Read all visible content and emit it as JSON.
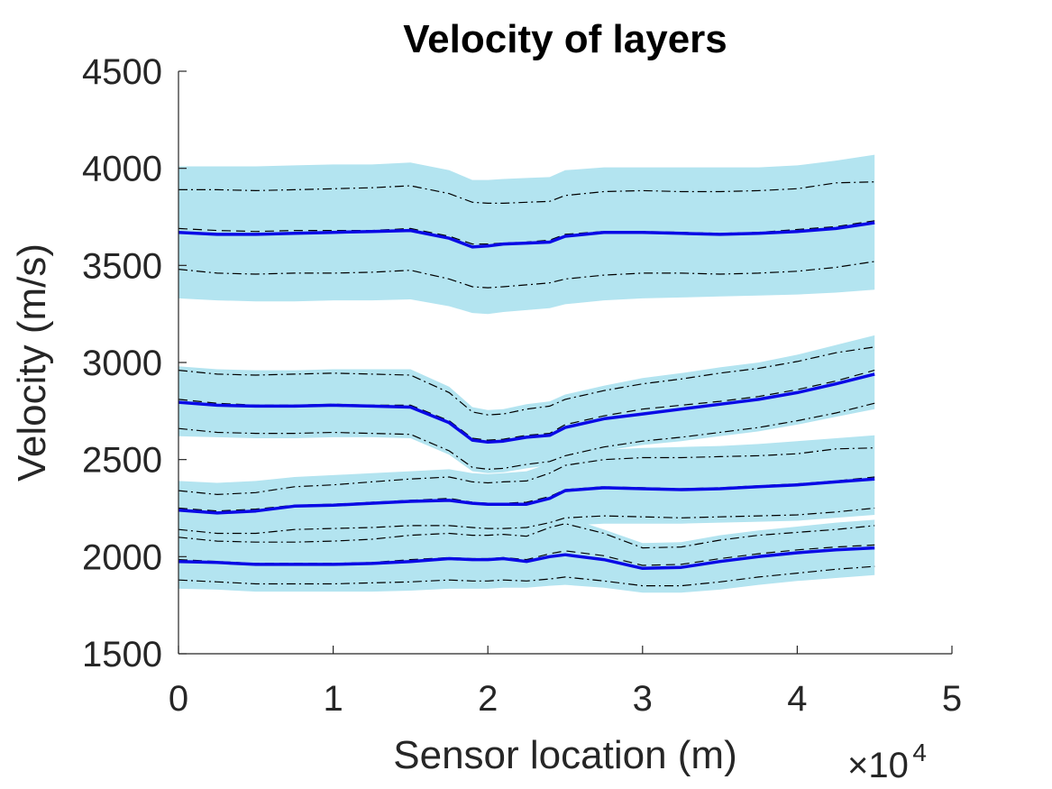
{
  "chart_data": {
    "type": "area",
    "title": "Velocity of layers",
    "xlabel": "Sensor location (m)",
    "ylabel": "Velocity (m/s)",
    "x_exponent": {
      "base": "×10",
      "power": "4"
    },
    "xlim": [
      0,
      5
    ],
    "ylim": [
      1500,
      4500
    ],
    "xticks": [
      0,
      1,
      2,
      3,
      4,
      5
    ],
    "xtick_labels": [
      "0",
      "1",
      "2",
      "3",
      "4",
      "5"
    ],
    "yticks": [
      1500,
      2000,
      2500,
      3000,
      3500,
      4000,
      4500
    ],
    "ytick_labels": [
      "1500",
      "2000",
      "2500",
      "3000",
      "3500",
      "4000",
      "4500"
    ],
    "grid": false,
    "colors": {
      "band": "#b3e4f0",
      "mean": "#0a0ae6",
      "dashed": "#000000"
    },
    "x": [
      0,
      0.25,
      0.5,
      0.75,
      1.0,
      1.25,
      1.5,
      1.75,
      1.9,
      2.0,
      2.1,
      2.25,
      2.4,
      2.5,
      2.75,
      3.0,
      3.25,
      3.5,
      3.75,
      4.0,
      4.25,
      4.5
    ],
    "series": [
      {
        "mean": [
          3670,
          3660,
          3660,
          3665,
          3670,
          3675,
          3680,
          3640,
          3595,
          3600,
          3610,
          3615,
          3620,
          3650,
          3670,
          3670,
          3665,
          3660,
          3665,
          3675,
          3690,
          3720
        ],
        "dashed": [
          3690,
          3680,
          3675,
          3680,
          3680,
          3680,
          3690,
          3650,
          3610,
          3610,
          3615,
          3620,
          3630,
          3660,
          3675,
          3675,
          3670,
          3665,
          3670,
          3685,
          3700,
          3730
        ],
        "upper_dashdot": [
          3890,
          3890,
          3885,
          3890,
          3895,
          3900,
          3910,
          3870,
          3825,
          3820,
          3820,
          3825,
          3830,
          3860,
          3880,
          3885,
          3880,
          3880,
          3885,
          3895,
          3925,
          3930
        ],
        "lower_dashdot": [
          3480,
          3460,
          3455,
          3460,
          3460,
          3465,
          3475,
          3430,
          3390,
          3385,
          3390,
          3400,
          3410,
          3430,
          3450,
          3460,
          3460,
          3455,
          3460,
          3470,
          3490,
          3520
        ],
        "band_upper": [
          4010,
          4010,
          4010,
          4015,
          4020,
          4020,
          4030,
          3990,
          3940,
          3940,
          3945,
          3950,
          3955,
          3990,
          4005,
          4005,
          4005,
          4005,
          4005,
          4015,
          4040,
          4070
        ],
        "band_lower": [
          3330,
          3320,
          3315,
          3315,
          3320,
          3320,
          3325,
          3290,
          3255,
          3250,
          3260,
          3270,
          3280,
          3300,
          3320,
          3330,
          3335,
          3340,
          3345,
          3350,
          3360,
          3375
        ]
      },
      {
        "mean": [
          2795,
          2780,
          2775,
          2775,
          2780,
          2775,
          2770,
          2690,
          2600,
          2590,
          2595,
          2615,
          2625,
          2665,
          2710,
          2735,
          2760,
          2785,
          2810,
          2845,
          2890,
          2940
        ],
        "dashed": [
          2810,
          2790,
          2780,
          2780,
          2785,
          2780,
          2780,
          2700,
          2610,
          2600,
          2605,
          2625,
          2635,
          2680,
          2725,
          2760,
          2780,
          2800,
          2825,
          2860,
          2905,
          2960
        ],
        "upper_dashdot": [
          2960,
          2940,
          2935,
          2940,
          2945,
          2940,
          2935,
          2845,
          2745,
          2730,
          2735,
          2760,
          2775,
          2810,
          2855,
          2890,
          2915,
          2945,
          2970,
          3005,
          3050,
          3080
        ],
        "lower_dashdot": [
          2660,
          2640,
          2635,
          2635,
          2640,
          2635,
          2630,
          2545,
          2460,
          2450,
          2455,
          2475,
          2490,
          2520,
          2565,
          2595,
          2615,
          2640,
          2665,
          2700,
          2740,
          2790
        ],
        "band_upper": [
          2980,
          2965,
          2960,
          2960,
          2965,
          2965,
          2965,
          2875,
          2770,
          2755,
          2760,
          2785,
          2800,
          2835,
          2880,
          2920,
          2945,
          2975,
          3000,
          3040,
          3090,
          3140
        ],
        "band_lower": [
          2620,
          2615,
          2610,
          2610,
          2615,
          2615,
          2610,
          2525,
          2440,
          2430,
          2435,
          2455,
          2470,
          2495,
          2545,
          2575,
          2595,
          2620,
          2645,
          2680,
          2720,
          2760
        ]
      },
      {
        "mean": [
          2240,
          2225,
          2235,
          2260,
          2265,
          2275,
          2285,
          2290,
          2275,
          2270,
          2270,
          2270,
          2300,
          2340,
          2355,
          2350,
          2345,
          2350,
          2360,
          2370,
          2385,
          2400
        ],
        "dashed": [
          2250,
          2235,
          2245,
          2265,
          2270,
          2280,
          2290,
          2300,
          2280,
          2275,
          2275,
          2280,
          2310,
          2345,
          2360,
          2355,
          2350,
          2355,
          2365,
          2375,
          2390,
          2410
        ],
        "upper_dashdot": [
          2340,
          2320,
          2330,
          2360,
          2370,
          2385,
          2400,
          2410,
          2385,
          2380,
          2385,
          2390,
          2430,
          2470,
          2500,
          2510,
          2510,
          2515,
          2520,
          2530,
          2555,
          2560
        ],
        "lower_dashdot": [
          2140,
          2120,
          2120,
          2140,
          2145,
          2150,
          2160,
          2160,
          2150,
          2145,
          2145,
          2150,
          2175,
          2200,
          2210,
          2205,
          2200,
          2205,
          2210,
          2215,
          2230,
          2250
        ],
        "band_upper": [
          2390,
          2380,
          2390,
          2410,
          2420,
          2430,
          2440,
          2450,
          2430,
          2425,
          2430,
          2440,
          2480,
          2520,
          2550,
          2560,
          2565,
          2570,
          2580,
          2595,
          2610,
          2625
        ],
        "band_lower": [
          2090,
          2070,
          2070,
          2080,
          2090,
          2095,
          2100,
          2110,
          2100,
          2100,
          2105,
          2110,
          2130,
          2160,
          2170,
          2170,
          2170,
          2175,
          2180,
          2185,
          2200,
          2215
        ]
      },
      {
        "mean": [
          1975,
          1970,
          1960,
          1960,
          1960,
          1965,
          1975,
          1990,
          1985,
          1985,
          1990,
          1975,
          2000,
          2010,
          1985,
          1940,
          1945,
          1975,
          2000,
          2020,
          2035,
          2045
        ],
        "dashed": [
          1985,
          1975,
          1965,
          1965,
          1965,
          1970,
          1985,
          1995,
          1990,
          1990,
          1995,
          1985,
          2015,
          2030,
          2005,
          1955,
          1960,
          1990,
          2015,
          2035,
          2050,
          2060
        ],
        "upper_dashdot": [
          2100,
          2080,
          2075,
          2075,
          2080,
          2090,
          2110,
          2120,
          2110,
          2110,
          2115,
          2105,
          2150,
          2170,
          2120,
          2045,
          2050,
          2085,
          2110,
          2125,
          2140,
          2160
        ],
        "lower_dashdot": [
          1880,
          1870,
          1860,
          1860,
          1860,
          1865,
          1870,
          1880,
          1875,
          1875,
          1880,
          1875,
          1885,
          1895,
          1875,
          1850,
          1850,
          1870,
          1895,
          1915,
          1935,
          1950
        ],
        "band_upper": [
          2170,
          2160,
          2150,
          2150,
          2155,
          2160,
          2175,
          2185,
          2175,
          2175,
          2180,
          2175,
          2195,
          2205,
          2140,
          2070,
          2075,
          2110,
          2135,
          2155,
          2175,
          2190
        ],
        "band_lower": [
          1835,
          1830,
          1820,
          1820,
          1820,
          1820,
          1825,
          1835,
          1835,
          1835,
          1840,
          1840,
          1850,
          1855,
          1840,
          1815,
          1815,
          1830,
          1855,
          1875,
          1890,
          1905
        ]
      }
    ]
  }
}
